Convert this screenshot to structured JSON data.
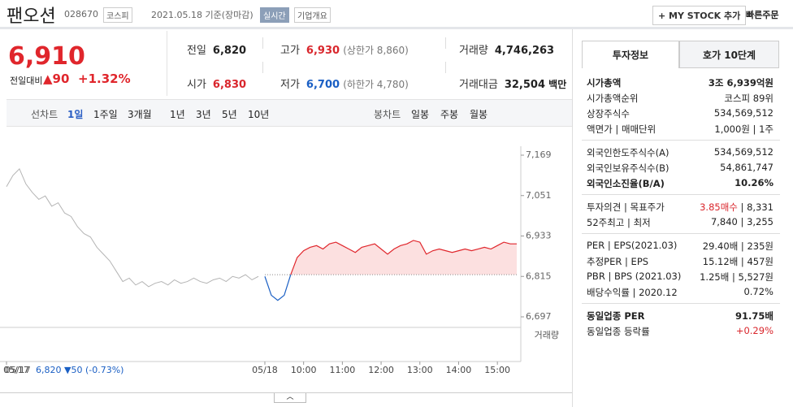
{
  "header": {
    "name": "팬오션",
    "code": "028670",
    "market": "코스피",
    "date": "2021.05.18 기준(장마감)",
    "realtime": "실시간",
    "company_info": "기업개요",
    "my_stock": "+ MY STOCK 추가",
    "quick_order": "빠른주문"
  },
  "quote": {
    "price": "6,910",
    "change_label": "전일대비",
    "change": "▲90",
    "change_rate": "+1.32%",
    "stats": [
      {
        "label": "전일",
        "value": "6,820",
        "color": "#222"
      },
      {
        "label": "고가",
        "value": "6,930",
        "note": "(상한가 8,860)",
        "color": "#d9262c"
      },
      {
        "label": "거래량",
        "value": "4,746,263",
        "color": "#222"
      },
      {
        "label": "시가",
        "value": "6,830",
        "color": "#d9262c"
      },
      {
        "label": "저가",
        "value": "6,700",
        "note": "(하한가 4,780)",
        "color": "#1a5fc4"
      },
      {
        "label": "거래대금",
        "value": "32,504",
        "unit": "백만",
        "color": "#222"
      }
    ]
  },
  "chart_tabs": {
    "line_label": "선차트",
    "line": [
      "1일",
      "1주일",
      "3개월",
      "1년",
      "3년",
      "5년",
      "10년"
    ],
    "candle_label": "봉차트",
    "candle": [
      "일봉",
      "주봉",
      "월봉"
    ]
  },
  "chart_data": {
    "type": "line",
    "ylim": [
      6697,
      7169
    ],
    "yticks": [
      {
        "value": 6697,
        "label": "6,697"
      },
      {
        "value": 6815,
        "label": "6,815"
      },
      {
        "value": 6933,
        "label": "6,933"
      },
      {
        "value": 7051,
        "label": "7,051"
      },
      {
        "value": 7169,
        "label": "7,169"
      }
    ],
    "baseline": 6820,
    "categories": [
      "05/17",
      null,
      null,
      null,
      null,
      null,
      null,
      null,
      null,
      null,
      null,
      null,
      null,
      null,
      null,
      null,
      null,
      null,
      null,
      null,
      null,
      null,
      null,
      null,
      null,
      null,
      null,
      null,
      null,
      null,
      null,
      null,
      null,
      null,
      null,
      null,
      null,
      null,
      null,
      null,
      "05/18",
      null,
      null,
      null,
      null,
      null,
      "10:00",
      null,
      null,
      null,
      null,
      null,
      "11:00",
      null,
      null,
      null,
      null,
      null,
      "12:00",
      null,
      null,
      null,
      null,
      null,
      "13:00",
      null,
      null,
      null,
      null,
      null,
      "14:00",
      null,
      null,
      null,
      null,
      null,
      "15:00",
      null,
      null,
      null
    ],
    "series": [
      {
        "color": "#b4b4b4",
        "values": [
          7077,
          7110,
          7129,
          7085,
          7060,
          7040,
          7050,
          7020,
          7030,
          7000,
          6990,
          6960,
          6940,
          6930,
          6900,
          6880,
          6860,
          6830,
          6800,
          6810,
          6790,
          6800,
          6785,
          6795,
          6800,
          6790,
          6805,
          6795,
          6800,
          6810,
          6800,
          6795,
          6805,
          6810,
          6800,
          6815,
          6810,
          6820,
          6805,
          6815,
          null,
          null,
          null,
          null,
          null,
          null,
          null,
          null,
          null,
          null,
          null,
          null,
          null,
          null,
          null,
          null,
          null,
          null,
          null,
          null,
          null,
          null,
          null,
          null,
          null,
          null,
          null,
          null,
          null,
          null,
          null,
          null,
          null,
          null,
          null,
          null,
          null,
          null,
          null,
          null
        ]
      },
      {
        "color": "#e0262c",
        "down_color": "#1a5fc4",
        "fill": "#fce0e0",
        "values": [
          null,
          null,
          null,
          null,
          null,
          null,
          null,
          null,
          null,
          null,
          null,
          null,
          null,
          null,
          null,
          null,
          null,
          null,
          null,
          null,
          null,
          null,
          null,
          null,
          null,
          null,
          null,
          null,
          null,
          null,
          null,
          null,
          null,
          null,
          null,
          null,
          null,
          null,
          null,
          null,
          6815,
          6760,
          6745,
          6760,
          6820,
          6870,
          6890,
          6900,
          6905,
          6895,
          6910,
          6915,
          6905,
          6895,
          6885,
          6900,
          6905,
          6910,
          6895,
          6880,
          6895,
          6905,
          6910,
          6920,
          6915,
          6880,
          6890,
          6895,
          6890,
          6885,
          6890,
          6895,
          6890,
          6895,
          6900,
          6895,
          6905,
          6915,
          6910,
          6910
        ]
      }
    ]
  },
  "volume_label": "거래량",
  "prev_summary": {
    "date": "05/17",
    "price": "6,820",
    "change": "▼50",
    "rate": "(-0.73%)"
  },
  "invest": {
    "tabs": [
      "투자정보",
      "호가 10단계"
    ],
    "groups": [
      [
        {
          "label": [
            "시가총액"
          ],
          "value": [
            "3조 6,939억원"
          ],
          "bold": true
        },
        {
          "label": [
            "시가총액순위"
          ],
          "value": [
            "코스피 89위"
          ]
        },
        {
          "label": [
            "상장주식수"
          ],
          "value": [
            "534,569,512"
          ]
        },
        {
          "label": [
            "액면가",
            "매매단위"
          ],
          "value": [
            "1,000원",
            "1주"
          ]
        }
      ],
      [
        {
          "label": [
            "외국인한도주식수(A)"
          ],
          "value": [
            "534,569,512"
          ]
        },
        {
          "label": [
            "외국인보유주식수(B)"
          ],
          "value": [
            "54,861,747"
          ]
        },
        {
          "label": [
            "외국인소진율(B/A)"
          ],
          "value": [
            "10.26%"
          ],
          "bold": true
        }
      ],
      [
        {
          "label": [
            "투자의견",
            "목표주가"
          ],
          "value": [
            "3.85매수",
            "8,331"
          ],
          "red": true
        },
        {
          "label": [
            "52주최고",
            "최저"
          ],
          "value": [
            "7,840",
            "3,255"
          ]
        }
      ],
      [
        {
          "label": [
            "PER",
            "EPS(2021.03)"
          ],
          "value": [
            "29.40배",
            "235원"
          ]
        },
        {
          "label": [
            "추정PER",
            "EPS"
          ],
          "value": [
            "15.12배",
            "457원"
          ]
        },
        {
          "label": [
            "PBR",
            "BPS (2021.03)"
          ],
          "value": [
            "1.25배",
            "5,527원"
          ]
        },
        {
          "label": [
            "배당수익률",
            "2020.12"
          ],
          "value": [
            "0.72%"
          ]
        }
      ],
      [
        {
          "label": [
            "동일업종 PER"
          ],
          "value": [
            "91.75배"
          ],
          "bold": true
        },
        {
          "label": [
            "동일업종 등락률"
          ],
          "value": [
            "+0.29%"
          ],
          "red": true
        }
      ]
    ]
  }
}
